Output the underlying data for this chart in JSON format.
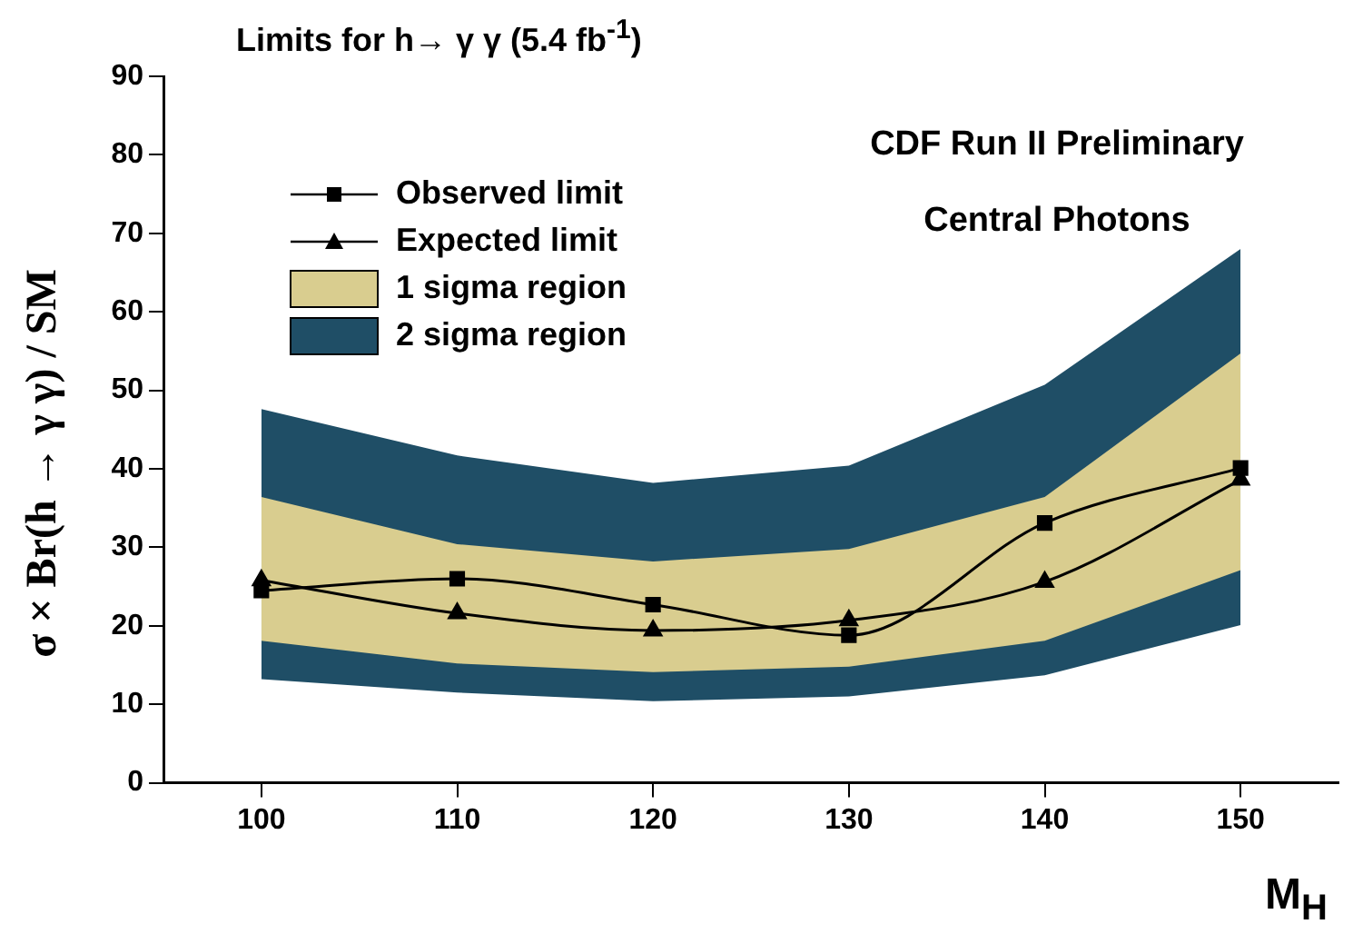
{
  "chart_data": {
    "type": "line",
    "title": "Limits for h→ γ γ (5.4 fb$^{-1}$)",
    "xlabel": "M$_{H}$",
    "ylabel": "σ × Br(h → γ γ) / SM",
    "annotations": [
      "CDF Run II Preliminary",
      "Central Photons"
    ],
    "x": [
      100,
      110,
      120,
      130,
      140,
      150
    ],
    "series": [
      {
        "name": "Observed limit",
        "type": "line",
        "color": "#000000",
        "marker": "square",
        "values": [
          24.5,
          26.0,
          22.7,
          18.8,
          33.1,
          40.1
        ]
      },
      {
        "name": "Expected limit",
        "color": "#000000",
        "marker": "triangle",
        "values": [
          25.8,
          21.6,
          19.4,
          20.7,
          25.6,
          38.6
        ]
      },
      {
        "name": "1 sigma region",
        "type": "area",
        "color": "#d9cd8f",
        "values": [
          null,
          null,
          null,
          null,
          null,
          null
        ],
        "lower": [
          18.1,
          15.2,
          14.1,
          14.8,
          18.1,
          27.1
        ],
        "upper": [
          36.4,
          30.4,
          28.2,
          29.8,
          36.4,
          54.7
        ]
      },
      {
        "name": "2 sigma region",
        "type": "area",
        "color": "#1f4e66",
        "values": [
          null,
          null,
          null,
          null,
          null,
          null
        ],
        "lower": [
          13.2,
          11.5,
          10.4,
          11.0,
          13.7,
          20.1
        ],
        "upper": [
          47.6,
          41.7,
          38.2,
          40.4,
          50.7,
          68
        ]
      }
    ],
    "xlim": [
      95,
      155
    ],
    "xticks": [
      100,
      110,
      120,
      130,
      140,
      150
    ],
    "ylim": [
      0,
      90
    ],
    "yticks": [
      0,
      10,
      20,
      30,
      40,
      50,
      60,
      70,
      80,
      90
    ],
    "grid": false,
    "legend": "top left"
  }
}
